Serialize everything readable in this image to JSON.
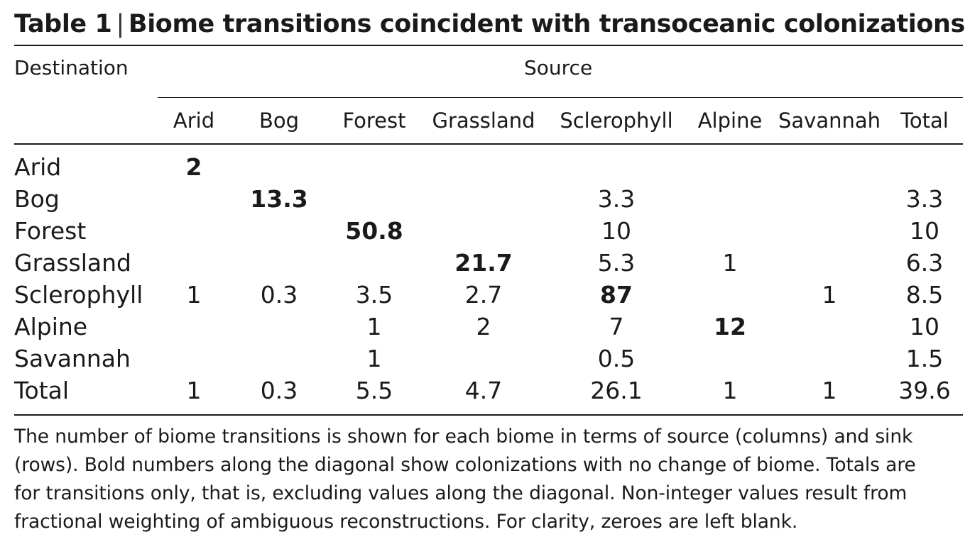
{
  "table": {
    "title_number": "Table 1",
    "title_separator": "|",
    "title_text": "Biome transitions coincident with transoceanic colonizations",
    "destination_label": "Destination",
    "source_label": "Source",
    "columns": [
      "Arid",
      "Bog",
      "Forest",
      "Grassland",
      "Sclerophyll",
      "Alpine",
      "Savannah",
      "Total"
    ],
    "rows": [
      {
        "label": "Arid",
        "cells": [
          "2",
          "",
          "",
          "",
          "",
          "",
          "",
          ""
        ]
      },
      {
        "label": "Bog",
        "cells": [
          "",
          "13.3",
          "",
          "",
          "3.3",
          "",
          "",
          "3.3"
        ]
      },
      {
        "label": "Forest",
        "cells": [
          "",
          "",
          "50.8",
          "",
          "10",
          "",
          "",
          "10"
        ]
      },
      {
        "label": "Grassland",
        "cells": [
          "",
          "",
          "",
          "21.7",
          "5.3",
          "1",
          "",
          "6.3"
        ]
      },
      {
        "label": "Sclerophyll",
        "cells": [
          "1",
          "0.3",
          "3.5",
          "2.7",
          "87",
          "",
          "1",
          "8.5"
        ]
      },
      {
        "label": "Alpine",
        "cells": [
          "",
          "",
          "1",
          "2",
          "7",
          "12",
          "",
          "10"
        ]
      },
      {
        "label": "Savannah",
        "cells": [
          "",
          "",
          "1",
          "",
          "0.5",
          "",
          "",
          "1.5"
        ]
      },
      {
        "label": "Total",
        "cells": [
          "1",
          "0.3",
          "5.5",
          "4.7",
          "26.1",
          "1",
          "1",
          "39.6"
        ]
      }
    ],
    "footnote_lines": [
      "The number of biome transitions is shown for each biome in terms of source (columns) and sink",
      "(rows). Bold numbers along the diagonal show colonizations with no change of biome. Totals are",
      "for transitions only, that is, excluding values along the diagonal. Non-integer values result from",
      "fractional weighting of ambiguous reconstructions. For clarity, zeroes are left blank."
    ]
  }
}
